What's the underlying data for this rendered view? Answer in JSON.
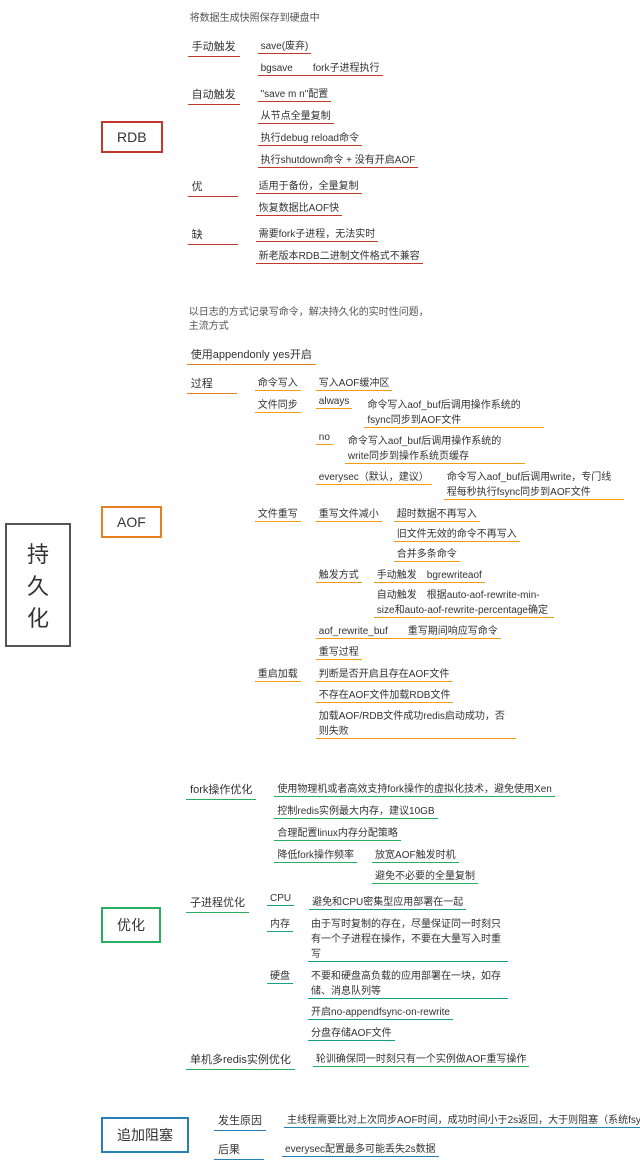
{
  "root": "持久化",
  "branches": [
    {
      "label": "RDB",
      "color": "c-red",
      "desc": "将数据生成快照保存到硬盘中",
      "children": [
        {
          "label": "手动触发",
          "c": "b-red",
          "children": [
            {
              "label": "save(废弃)",
              "c": "b-red"
            },
            {
              "label": "bgsave　　fork子进程执行",
              "c": "b-red"
            }
          ]
        },
        {
          "label": "自动触发",
          "c": "b-red",
          "children": [
            {
              "label": "\"save m n\"配置",
              "c": "b-red"
            },
            {
              "label": "从节点全量复制",
              "c": "b-red"
            },
            {
              "label": "执行debug reload命令",
              "c": "b-red"
            },
            {
              "label": "执行shutdown命令 + 没有开启AOF",
              "c": "b-red"
            }
          ]
        },
        {
          "label": "优",
          "c": "b-red",
          "children": [
            {
              "label": "适用于备份，全量复制",
              "c": "b-red"
            },
            {
              "label": "恢复数据比AOF快",
              "c": "b-red"
            }
          ]
        },
        {
          "label": "缺",
          "c": "b-red",
          "children": [
            {
              "label": "需要fork子进程，无法实时",
              "c": "b-red"
            },
            {
              "label": "新老版本RDB二进制文件格式不兼容",
              "c": "b-red"
            }
          ]
        }
      ]
    },
    {
      "label": "AOF",
      "color": "c-orange",
      "desc": "以日志的方式记录写命令，解决持久化的实时性问题，主流方式",
      "children": [
        {
          "label": "使用appendonly yes开启",
          "c": "b-orange"
        },
        {
          "label": "过程",
          "c": "b-orange",
          "children": [
            {
              "label": "命令写入",
              "c": "b-yellow",
              "children": [
                {
                  "label": "写入AOF缓冲区",
                  "c": "b-yellow"
                }
              ]
            },
            {
              "label": "文件同步",
              "c": "b-yellow",
              "children": [
                {
                  "label": "always",
                  "c": "b-yellow",
                  "children": [
                    {
                      "label": "命令写入aof_buf后调用操作系统的fsync同步到AOF文件",
                      "c": "b-yellow"
                    }
                  ]
                },
                {
                  "label": "no",
                  "c": "b-yellow",
                  "children": [
                    {
                      "label": "命令写入aof_buf后调用操作系统的write同步到操作系统页缓存",
                      "c": "b-yellow"
                    }
                  ]
                },
                {
                  "label": "everysec（默认，建议）",
                  "c": "b-yellow",
                  "children": [
                    {
                      "label": "命令写入aof_buf后调用write，专门线程每秒执行fsync同步到AOF文件",
                      "c": "b-yellow"
                    }
                  ]
                }
              ]
            },
            {
              "label": "文件重写",
              "c": "b-yellow",
              "children": [
                {
                  "label": "重写文件减小",
                  "c": "b-yellow",
                  "children": [
                    {
                      "label": "超时数据不再写入",
                      "c": "b-yellow"
                    },
                    {
                      "label": "旧文件无效的命令不再写入",
                      "c": "b-yellow"
                    },
                    {
                      "label": "合并多条命令",
                      "c": "b-yellow"
                    }
                  ]
                },
                {
                  "label": "触发方式",
                  "c": "b-yellow",
                  "children": [
                    {
                      "label": "手动触发　bgrewriteaof",
                      "c": "b-yellow"
                    },
                    {
                      "label": "自动触发　根据auto-aof-rewrite-min-size和auto-aof-rewrite-percentage确定",
                      "c": "b-yellow"
                    }
                  ]
                },
                {
                  "label": "aof_rewrite_buf　　重写期间响应写命令",
                  "c": "b-yellow"
                },
                {
                  "label": "重写过程",
                  "c": "b-yellow"
                }
              ]
            },
            {
              "label": "重启加载",
              "c": "b-yellow",
              "children": [
                {
                  "label": "判断是否开启且存在AOF文件",
                  "c": "b-yellow"
                },
                {
                  "label": "不存在AOF文件加载RDB文件",
                  "c": "b-yellow"
                },
                {
                  "label": "加载AOF/RDB文件成功redis启动成功，否则失败",
                  "c": "b-yellow"
                }
              ]
            }
          ]
        }
      ]
    },
    {
      "label": "优化",
      "color": "c-green",
      "children": [
        {
          "label": "fork操作优化",
          "c": "b-green",
          "children": [
            {
              "label": "使用物理机或者高效支持fork操作的虚拟化技术，避免使用Xen",
              "c": "b-green"
            },
            {
              "label": "控制redis实例最大内存，建议10GB",
              "c": "b-green"
            },
            {
              "label": "合理配置linux内存分配策略",
              "c": "b-green"
            },
            {
              "label": "降低fork操作频率",
              "c": "b-green",
              "children": [
                {
                  "label": "放宽AOF触发时机",
                  "c": "b-green"
                },
                {
                  "label": "避免不必要的全量复制",
                  "c": "b-green"
                }
              ]
            }
          ]
        },
        {
          "label": "子进程优化",
          "c": "b-green",
          "children": [
            {
              "label": "CPU",
              "c": "b-teal",
              "children": [
                {
                  "label": "避免和CPU密集型应用部署在一起",
                  "c": "b-teal"
                }
              ]
            },
            {
              "label": "内存",
              "c": "b-teal",
              "children": [
                {
                  "label": "由于写时复制的存在，尽量保证同一时刻只有一个子进程在操作，不要在大量写入时重写",
                  "c": "b-teal"
                }
              ]
            },
            {
              "label": "硬盘",
              "c": "b-teal",
              "children": [
                {
                  "label": "不要和硬盘高负载的应用部署在一块，如存储、消息队列等",
                  "c": "b-teal"
                },
                {
                  "label": "开启no-appendfsync-on-rewrite",
                  "c": "b-teal"
                },
                {
                  "label": "分盘存储AOF文件",
                  "c": "b-teal"
                }
              ]
            }
          ]
        },
        {
          "label": "单机多redis实例优化",
          "c": "b-green",
          "children": [
            {
              "label": "轮训确保同一时刻只有一个实例做AOF重写操作",
              "c": "b-green"
            }
          ]
        }
      ]
    },
    {
      "label": "追加阻塞",
      "color": "c-blue",
      "children": [
        {
          "label": "发生原因",
          "c": "b-blue",
          "children": [
            {
              "label": "主线程需要比对上次同步AOF时间，成功时间小于2s返回，大于则阻塞（系统fsync阻塞主线程）",
              "c": "b-blue"
            }
          ]
        },
        {
          "label": "后果",
          "c": "b-blue",
          "children": [
            {
              "label": "everysec配置最多可能丢失2s数据",
              "c": "b-blue"
            }
          ]
        }
      ]
    }
  ]
}
